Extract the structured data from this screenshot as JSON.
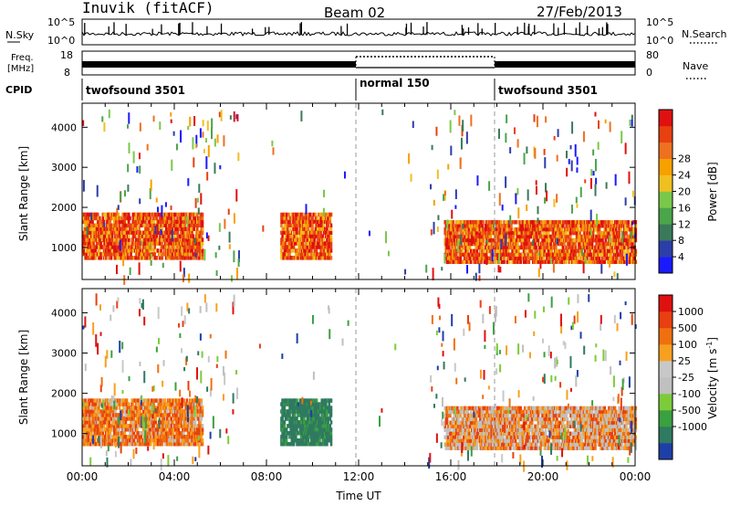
{
  "header": {
    "station": "Inuvik (fitACF)",
    "beam": "Beam 02",
    "date": "27/Feb/2013"
  },
  "summary_panels": {
    "nsky": {
      "label": "N.Sky",
      "ticks": [
        "10^5",
        "10^0"
      ]
    },
    "nsearch": {
      "label": "N.Search",
      "ticks": [
        "10^5",
        "10^0"
      ]
    },
    "freq": {
      "label_line1": "Freq.",
      "label_line2": "[MHz]",
      "ticks": [
        "18",
        "8"
      ]
    },
    "nave": {
      "label": "Nave",
      "ticks": [
        "80",
        "0"
      ]
    },
    "cpid": {
      "label": "CPID",
      "segments": [
        {
          "name": "twofsound 3501",
          "start_hour": 0,
          "end_hour": 12
        },
        {
          "name": "normal 150",
          "start_hour": 12,
          "end_hour": 18
        },
        {
          "name": "twofsound 3501",
          "start_hour": 18,
          "end_hour": 24
        }
      ]
    }
  },
  "chart_data": [
    {
      "type": "heatmap",
      "title": "",
      "ylabel": "Slant Range [km]",
      "xlabel": "",
      "xlim": [
        0,
        24
      ],
      "ylim": [
        200,
        4600
      ],
      "y_ticks": [
        "1000",
        "2000",
        "3000",
        "4000"
      ],
      "colorbar": {
        "label": "Power [dB]",
        "ticks": [
          "4",
          "8",
          "12",
          "16",
          "20",
          "24",
          "28"
        ],
        "colors": [
          "#1a1aff",
          "#2c3ea8",
          "#3a7a5a",
          "#4ba54a",
          "#7ac84a",
          "#f0c020",
          "#f7a000",
          "#ef7020",
          "#e84010",
          "#e01010"
        ]
      },
      "echo_regions_hour_km": [
        {
          "start": 0.0,
          "end": 5.2,
          "range_low": 700,
          "range_high": 1800,
          "dominant": "orange-red"
        },
        {
          "start": 8.6,
          "end": 10.8,
          "range_low": 700,
          "range_high": 1800,
          "dominant": "orange-red"
        },
        {
          "start": 15.7,
          "end": 24.0,
          "range_low": 600,
          "range_high": 1600,
          "dominant": "orange-red"
        }
      ]
    },
    {
      "type": "heatmap",
      "title": "",
      "ylabel": "Slant Range [km]",
      "xlabel": "Time UT",
      "xlim": [
        0,
        24
      ],
      "ylim": [
        200,
        4600
      ],
      "x_ticks": [
        "00:00",
        "04:00",
        "08:00",
        "12:00",
        "16:00",
        "20:00",
        "00:00"
      ],
      "y_ticks": [
        "1000",
        "2000",
        "3000",
        "4000"
      ],
      "colorbar": {
        "label": "Velocity [m s^-1]",
        "ticks": [
          "1000",
          "500",
          "100",
          "25",
          "-25",
          "-100",
          "-500",
          "-1000"
        ],
        "colors": [
          "#1e3fa8",
          "#2f7a60",
          "#3aa040",
          "#7ccc3a",
          "#c0c0c0",
          "#c8c8c8",
          "#f7a020",
          "#f07010",
          "#e84010",
          "#e01010"
        ]
      },
      "echo_regions_hour_km": [
        {
          "start": 0.0,
          "end": 5.2,
          "range_low": 700,
          "range_high": 1800,
          "dominant": "orange"
        },
        {
          "start": 8.6,
          "end": 10.8,
          "range_low": 700,
          "range_high": 1800,
          "dominant": "green"
        },
        {
          "start": 15.7,
          "end": 24.0,
          "range_low": 600,
          "range_high": 1600,
          "dominant": "orange/grey"
        }
      ]
    }
  ]
}
